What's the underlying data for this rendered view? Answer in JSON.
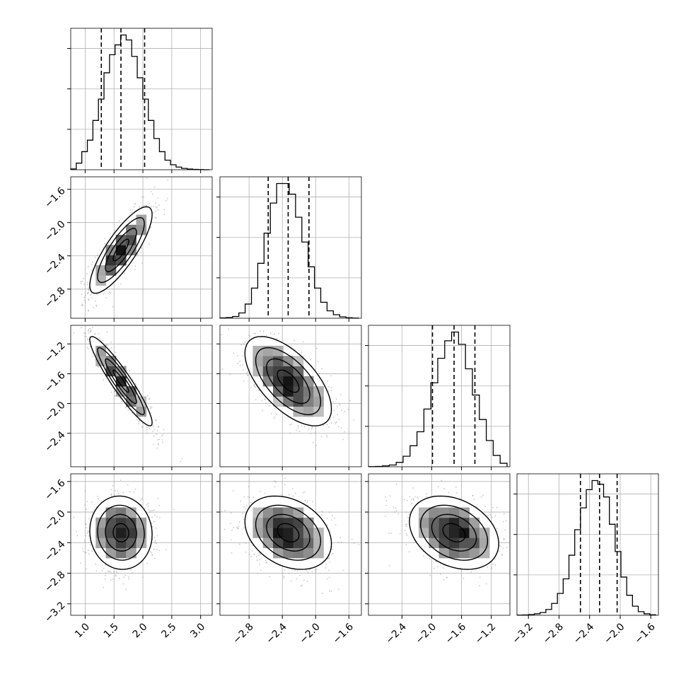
{
  "chart_data": {
    "type": "corner",
    "parameters": 4,
    "colors": {
      "ink": "#000000",
      "grid": "#b0b0b0",
      "scatter": "#9a9a9a",
      "background": "#ffffff"
    },
    "grid": true,
    "axes": [
      {
        "range": [
          0.75,
          3.2
        ],
        "ticks": [
          1.0,
          1.5,
          2.0,
          2.5,
          3.0
        ],
        "tick_labels": [
          "1.0",
          "1.5",
          "2.0",
          "2.5",
          "3.0"
        ]
      },
      {
        "range": [
          -3.15,
          -1.45
        ],
        "ticks": [
          -2.8,
          -2.4,
          -2.0,
          -1.6
        ],
        "tick_labels": [
          "−2.8",
          "−2.4",
          "−2.0",
          "−1.6"
        ]
      },
      {
        "range": [
          -2.85,
          -0.95
        ],
        "ticks": [
          -2.4,
          -2.0,
          -1.6,
          -1.2
        ],
        "tick_labels": [
          "−2.4",
          "−2.0",
          "−1.6",
          "−1.2"
        ]
      },
      {
        "range": [
          -3.35,
          -1.5
        ],
        "ticks": [
          -3.2,
          -2.8,
          -2.4,
          -2.0,
          -1.6
        ],
        "tick_labels": [
          "−3.2",
          "−2.8",
          "−2.4",
          "−2.0",
          "−1.6"
        ]
      }
    ],
    "quantiles": [
      [
        1.28,
        1.62,
        2.03
      ],
      [
        -2.57,
        -2.33,
        -2.08
      ],
      [
        -1.99,
        -1.7,
        -1.42
      ],
      [
        -2.52,
        -2.27,
        -2.04
      ]
    ],
    "histograms": [
      {
        "counts": [
          5,
          40,
          110,
          180,
          300,
          430,
          590,
          700,
          760,
          820,
          790,
          690,
          560,
          430,
          300,
          190,
          110,
          58,
          30,
          16,
          8,
          4,
          2,
          1,
          0
        ]
      },
      {
        "counts": [
          2,
          4,
          10,
          30,
          80,
          170,
          310,
          480,
          650,
          760,
          760,
          700,
          570,
          430,
          290,
          170,
          90,
          42,
          20,
          8,
          3,
          1
        ]
      },
      {
        "counts": [
          1,
          2,
          5,
          10,
          25,
          60,
          120,
          200,
          330,
          480,
          620,
          720,
          770,
          700,
          560,
          410,
          270,
          150,
          65,
          20
        ]
      },
      {
        "counts": [
          1,
          2,
          4,
          8,
          15,
          32,
          65,
          120,
          200,
          330,
          470,
          590,
          690,
          740,
          720,
          650,
          500,
          350,
          210,
          110,
          50,
          20,
          8,
          3
        ]
      }
    ],
    "pairs": [
      {
        "row": 1,
        "col": 0,
        "center": [
          1.62,
          -2.33
        ],
        "sd": [
          0.27,
          0.26
        ],
        "corr": 0.82
      },
      {
        "row": 2,
        "col": 0,
        "center": [
          1.62,
          -1.7
        ],
        "sd": [
          0.27,
          0.3
        ],
        "corr": -0.93
      },
      {
        "row": 2,
        "col": 1,
        "center": [
          -2.33,
          -1.7
        ],
        "sd": [
          0.26,
          0.3
        ],
        "corr": -0.62
      },
      {
        "row": 3,
        "col": 0,
        "center": [
          1.62,
          -2.27
        ],
        "sd": [
          0.27,
          0.24
        ],
        "corr": -0.05
      },
      {
        "row": 3,
        "col": 1,
        "center": [
          -2.33,
          -2.27
        ],
        "sd": [
          0.26,
          0.24
        ],
        "corr": -0.3
      },
      {
        "row": 3,
        "col": 2,
        "center": [
          -1.7,
          -2.27
        ],
        "sd": [
          0.3,
          0.24
        ],
        "corr": -0.3
      }
    ],
    "contour_levels_sigma": [
      0.5,
      1.0,
      1.5,
      2.0
    ]
  }
}
